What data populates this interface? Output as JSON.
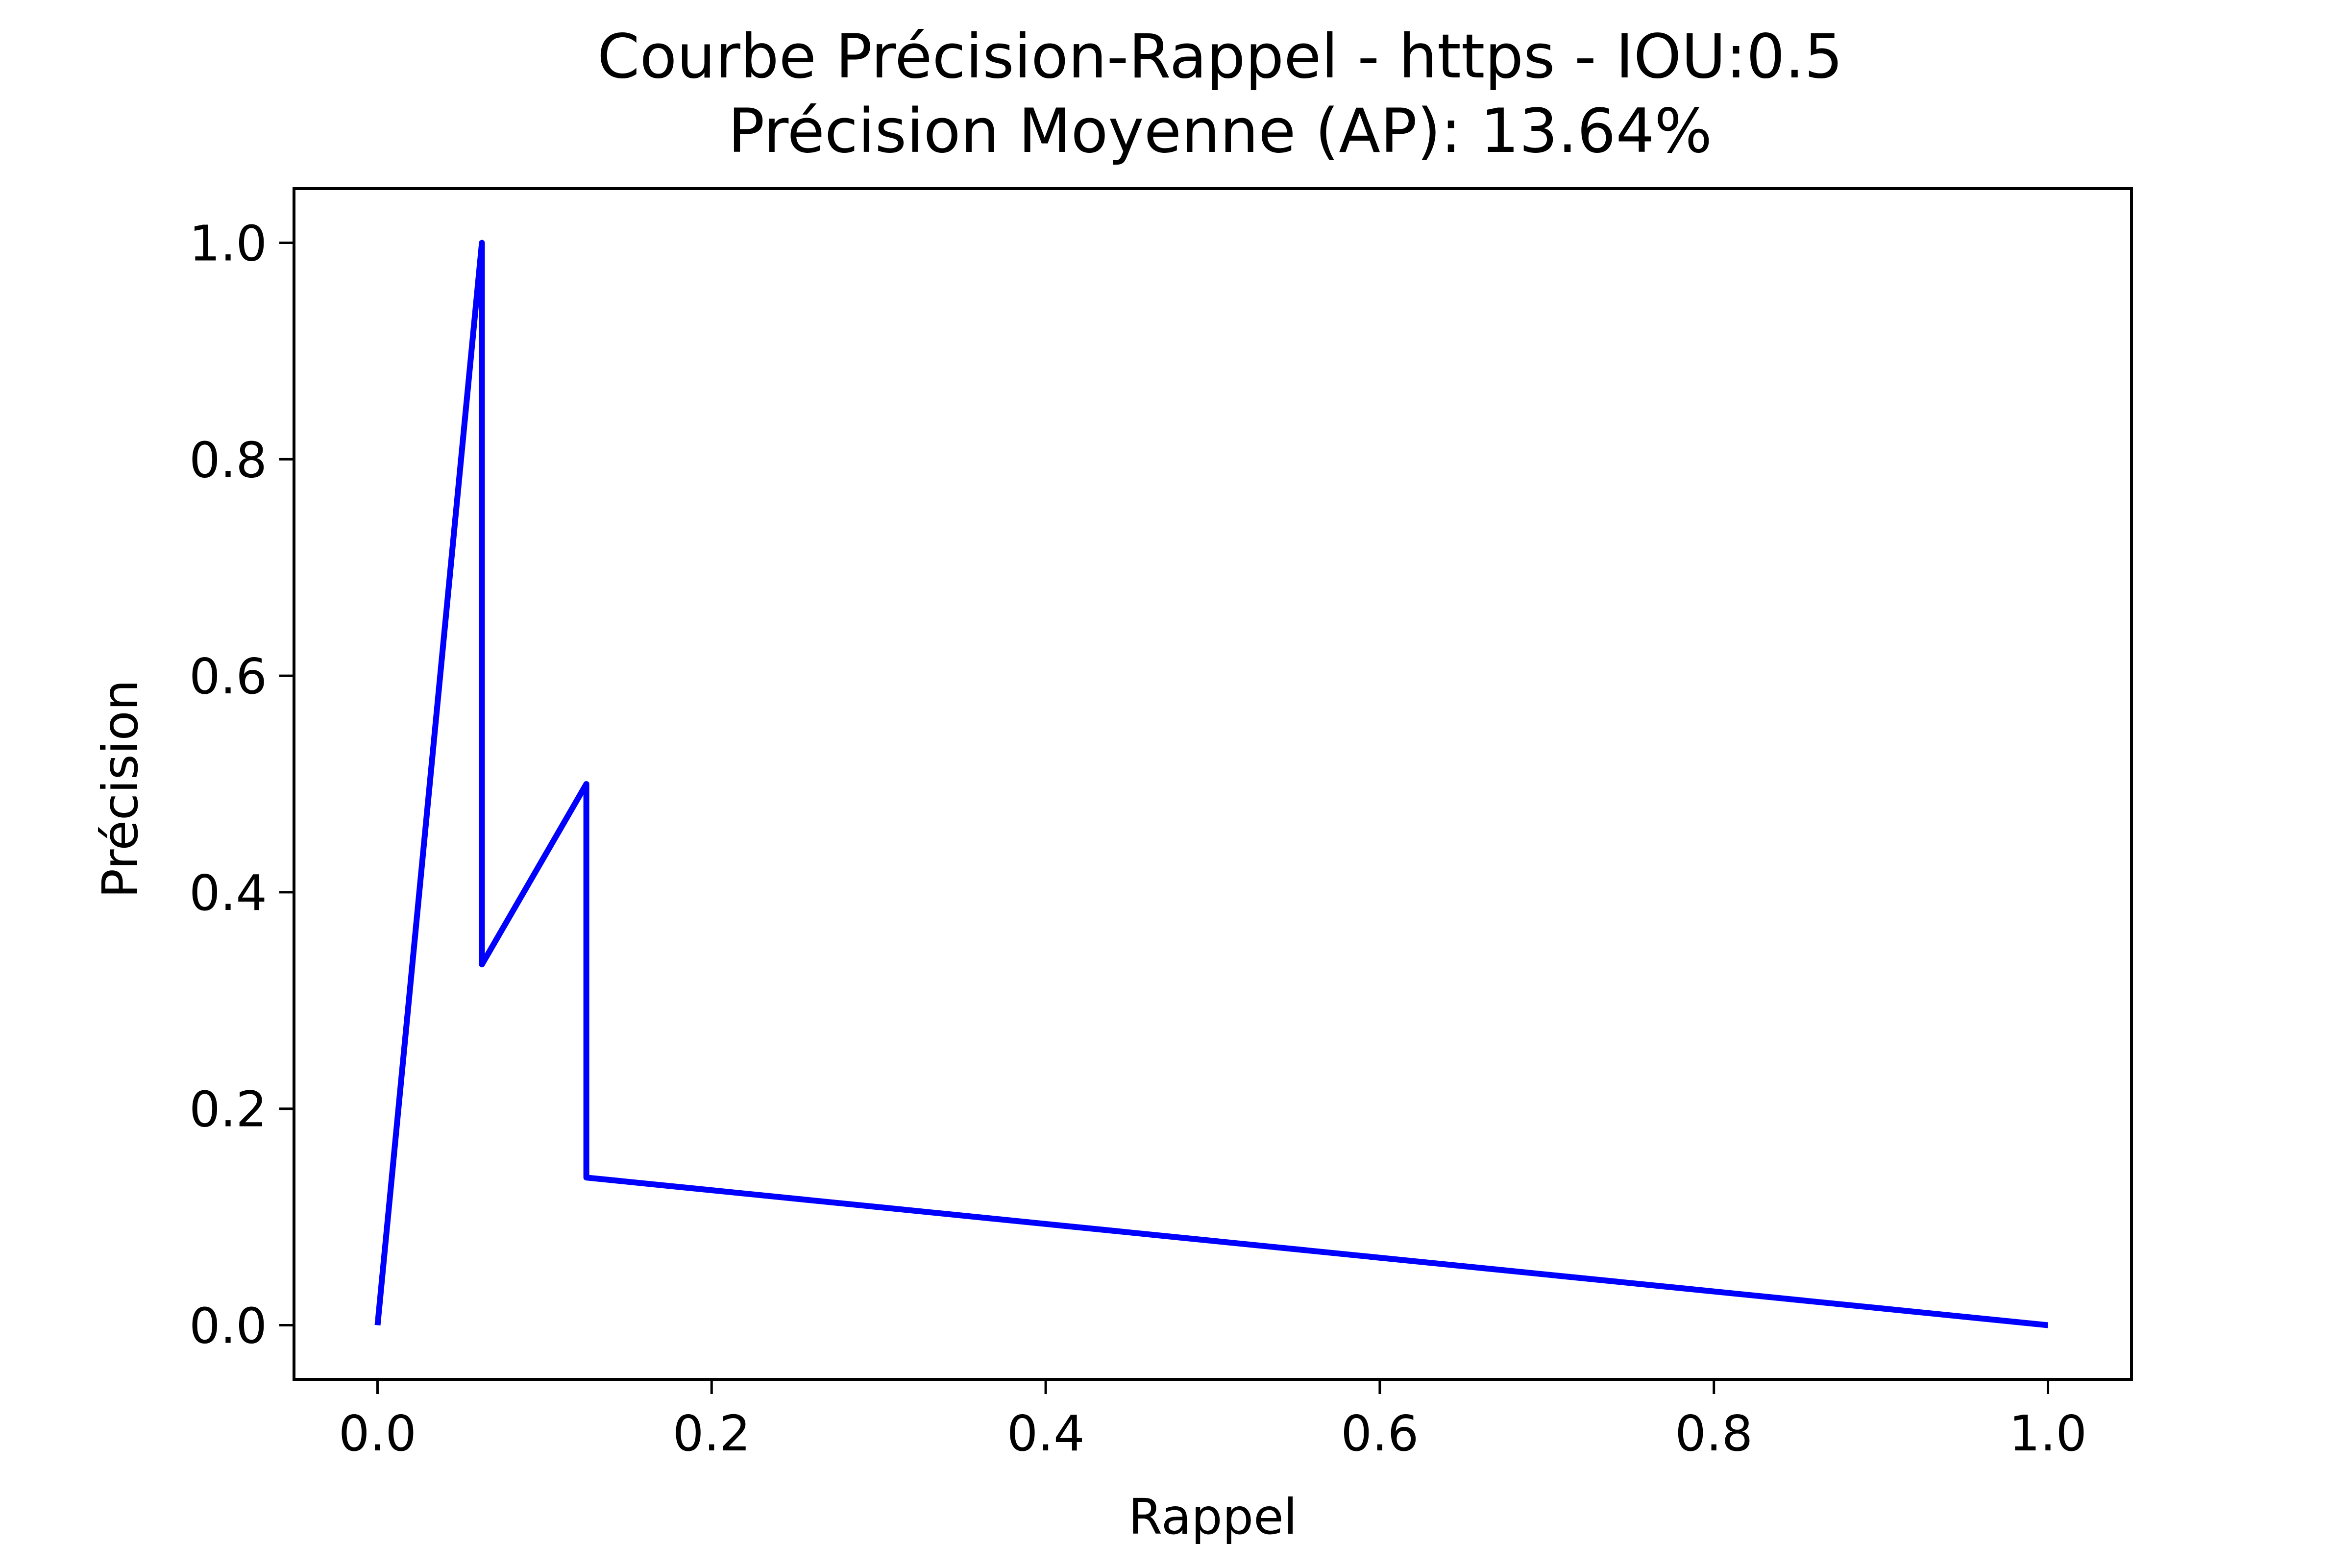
{
  "chart_data": {
    "type": "line",
    "title": "Courbe Précision-Rappel - https - IOU:0.5",
    "subtitle": "Précision Moyenne (AP): 13.64%",
    "xlabel": "Rappel",
    "ylabel": "Précision",
    "xlim": [
      -0.05,
      1.05
    ],
    "ylim": [
      -0.05,
      1.05
    ],
    "x_ticks": [
      0.0,
      0.2,
      0.4,
      0.6,
      0.8,
      1.0
    ],
    "y_ticks": [
      0.0,
      0.2,
      0.4,
      0.6,
      0.8,
      1.0
    ],
    "x_tick_labels": [
      "0.0",
      "0.2",
      "0.4",
      "0.6",
      "0.8",
      "1.0"
    ],
    "y_tick_labels": [
      "0.0",
      "0.2",
      "0.4",
      "0.6",
      "0.8",
      "1.0"
    ],
    "grid": false,
    "series": [
      {
        "color": "#0000ff",
        "x": [
          0.0,
          0.0625,
          0.0625,
          0.125,
          0.125,
          1.0
        ],
        "y": [
          0.0,
          1.0,
          0.3333,
          0.5,
          0.1364,
          0.0
        ]
      }
    ]
  }
}
